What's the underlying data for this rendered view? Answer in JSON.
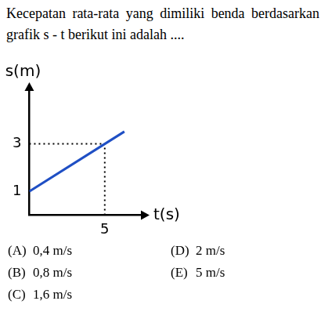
{
  "question": "Kecepatan rata-rata yang dimiliki benda berdasarkan grafik s - t berikut ini adalah ....",
  "options": [
    {
      "label": "(A)",
      "text": "0,4 m/s"
    },
    {
      "label": "(B)",
      "text": "0,8 m/s"
    },
    {
      "label": "(C)",
      "text": "1,6 m/s"
    },
    {
      "label": "(D)",
      "text": "2 m/s"
    },
    {
      "label": "(E)",
      "text": "5 m/s"
    }
  ],
  "chart_data": {
    "type": "line",
    "x_label": "t(s)",
    "y_label": "s(m)",
    "x": [
      0,
      5,
      6.3
    ],
    "values": [
      1,
      3,
      3.52
    ],
    "color": "#1f4fc4",
    "xlim": [
      0,
      7.5
    ],
    "xticks": [
      5
    ],
    "ylim": [
      0,
      5.3
    ],
    "yticks": [
      1,
      3
    ],
    "grid": false
  }
}
